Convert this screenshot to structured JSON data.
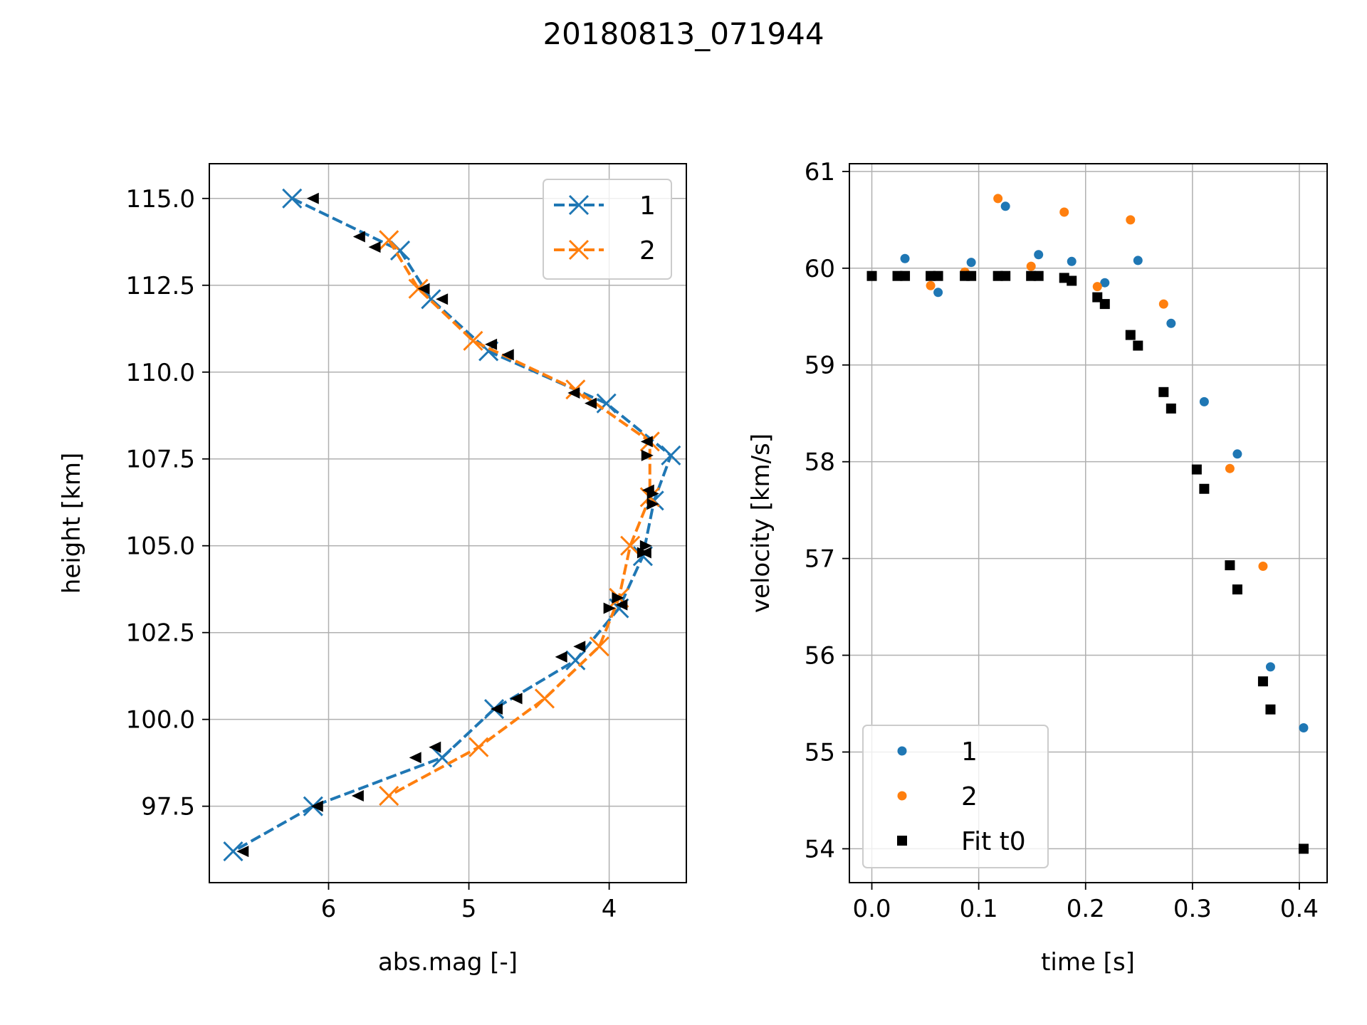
{
  "figure_title": "20180813_071944",
  "colors": {
    "series1": "#1f77b4",
    "series2": "#ff7f0e",
    "fit": "#000000",
    "grid": "#b0b0b0"
  },
  "chart_data": [
    {
      "type": "line",
      "xlabel": "abs.mag [-]",
      "ylabel": "height [km]",
      "xlim": [
        6.85,
        3.45
      ],
      "ylim": [
        95.3,
        116.0
      ],
      "x_inverted": true,
      "xticks": [
        6,
        5,
        4
      ],
      "xtick_labels": [
        "6",
        "5",
        "4"
      ],
      "yticks": [
        97.5,
        100.0,
        102.5,
        105.0,
        107.5,
        110.0,
        112.5,
        115.0
      ],
      "ytick_labels": [
        "97.5",
        "100.0",
        "102.5",
        "105.0",
        "107.5",
        "110.0",
        "112.5",
        "115.0"
      ],
      "grid": true,
      "legend_position": "top-right",
      "legend": [
        "1",
        "2"
      ],
      "series": [
        {
          "name": "1",
          "marker": "x",
          "linestyle": "dashed",
          "points": [
            [
              6.26,
              115.0
            ],
            [
              5.49,
              113.5
            ],
            [
              5.27,
              112.1
            ],
            [
              4.86,
              110.6
            ],
            [
              4.02,
              109.1
            ],
            [
              3.56,
              107.6
            ],
            [
              3.68,
              106.3
            ],
            [
              3.76,
              104.7
            ],
            [
              3.93,
              103.2
            ],
            [
              4.24,
              101.7
            ],
            [
              4.82,
              100.3
            ],
            [
              5.19,
              98.9
            ],
            [
              6.11,
              97.5
            ],
            [
              6.68,
              96.2
            ]
          ]
        },
        {
          "name": "2",
          "marker": "x",
          "linestyle": "dashed",
          "points": [
            [
              5.57,
              113.8
            ],
            [
              5.36,
              112.4
            ],
            [
              4.97,
              110.9
            ],
            [
              4.24,
              109.5
            ],
            [
              3.71,
              108.0
            ],
            [
              3.71,
              106.4
            ],
            [
              3.85,
              105.0
            ],
            [
              3.93,
              103.5
            ],
            [
              4.07,
              102.1
            ],
            [
              4.46,
              100.6
            ],
            [
              4.93,
              99.2
            ],
            [
              5.57,
              97.8
            ]
          ]
        },
        {
          "name": "",
          "marker": "triangle-left",
          "points": [
            [
              6.11,
              115.0
            ],
            [
              5.78,
              113.9
            ],
            [
              5.67,
              113.6
            ],
            [
              5.32,
              112.4
            ],
            [
              5.19,
              112.1
            ],
            [
              4.84,
              110.8
            ],
            [
              4.72,
              110.5
            ],
            [
              4.25,
              109.4
            ],
            [
              4.13,
              109.1
            ],
            [
              3.73,
              108.0
            ],
            [
              3.72,
              106.6
            ],
            [
              3.74,
              104.8
            ],
            [
              3.91,
              103.3
            ],
            [
              4.21,
              102.1
            ],
            [
              4.34,
              101.8
            ],
            [
              4.66,
              100.6
            ],
            [
              4.8,
              100.3
            ],
            [
              5.24,
              99.2
            ],
            [
              5.38,
              98.9
            ],
            [
              5.79,
              97.8
            ],
            [
              6.08,
              97.5
            ],
            [
              6.61,
              96.2
            ]
          ]
        },
        {
          "name": "",
          "marker": "triangle-right",
          "points": [
            [
              3.73,
              107.6
            ],
            [
              3.69,
              106.5
            ],
            [
              3.69,
              106.2
            ],
            [
              3.74,
              105.0
            ],
            [
              3.76,
              104.8
            ],
            [
              3.94,
              103.5
            ],
            [
              4.0,
              103.2
            ]
          ]
        }
      ]
    },
    {
      "type": "scatter",
      "xlabel": "time [s]",
      "ylabel": "velocity [km/s]",
      "xlim": [
        -0.021,
        0.426
      ],
      "ylim": [
        53.65,
        61.08
      ],
      "xticks": [
        0.0,
        0.1,
        0.2,
        0.3,
        0.4
      ],
      "xtick_labels": [
        "0.0",
        "0.1",
        "0.2",
        "0.3",
        "0.4"
      ],
      "yticks": [
        54,
        55,
        56,
        57,
        58,
        59,
        60,
        61
      ],
      "ytick_labels": [
        "54",
        "55",
        "56",
        "57",
        "58",
        "59",
        "60",
        "61"
      ],
      "grid": true,
      "legend_position": "lower-left",
      "legend": [
        "1",
        "2",
        "Fit t0"
      ],
      "series": [
        {
          "name": "1",
          "marker": "circle",
          "points": [
            [
              0.031,
              60.1
            ],
            [
              0.062,
              59.75
            ],
            [
              0.093,
              60.06
            ],
            [
              0.125,
              60.64
            ],
            [
              0.156,
              60.14
            ],
            [
              0.187,
              60.07
            ],
            [
              0.218,
              59.85
            ],
            [
              0.249,
              60.08
            ],
            [
              0.28,
              59.43
            ],
            [
              0.311,
              58.62
            ],
            [
              0.342,
              58.08
            ],
            [
              0.373,
              55.88
            ],
            [
              0.404,
              55.25
            ]
          ]
        },
        {
          "name": "2",
          "marker": "circle",
          "points": [
            [
              0.055,
              59.82
            ],
            [
              0.087,
              59.96
            ],
            [
              0.118,
              60.72
            ],
            [
              0.149,
              60.02
            ],
            [
              0.18,
              60.58
            ],
            [
              0.211,
              59.81
            ],
            [
              0.242,
              60.5
            ],
            [
              0.273,
              59.63
            ],
            [
              0.335,
              57.93
            ],
            [
              0.366,
              56.92
            ]
          ]
        },
        {
          "name": "Fit t0",
          "marker": "square",
          "points": [
            [
              0.0,
              59.92
            ],
            [
              0.024,
              59.92
            ],
            [
              0.031,
              59.92
            ],
            [
              0.055,
              59.92
            ],
            [
              0.062,
              59.92
            ],
            [
              0.087,
              59.92
            ],
            [
              0.093,
              59.92
            ],
            [
              0.118,
              59.92
            ],
            [
              0.125,
              59.92
            ],
            [
              0.149,
              59.92
            ],
            [
              0.156,
              59.92
            ],
            [
              0.18,
              59.9
            ],
            [
              0.187,
              59.87
            ],
            [
              0.211,
              59.7
            ],
            [
              0.218,
              59.63
            ],
            [
              0.242,
              59.31
            ],
            [
              0.249,
              59.2
            ],
            [
              0.273,
              58.72
            ],
            [
              0.28,
              58.55
            ],
            [
              0.304,
              57.92
            ],
            [
              0.311,
              57.72
            ],
            [
              0.335,
              56.93
            ],
            [
              0.342,
              56.68
            ],
            [
              0.366,
              55.73
            ],
            [
              0.373,
              55.44
            ],
            [
              0.404,
              54.0
            ]
          ]
        }
      ]
    }
  ]
}
